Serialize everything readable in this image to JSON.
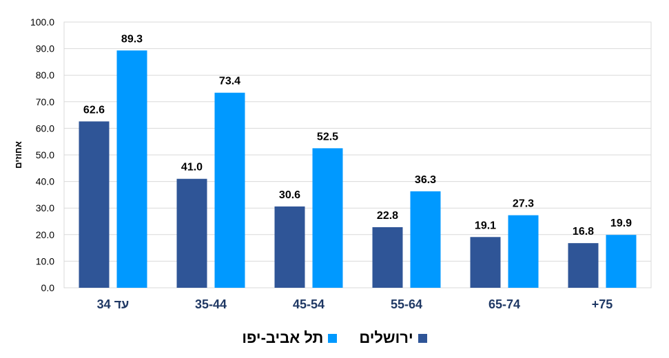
{
  "chart_data": {
    "type": "bar",
    "title": "",
    "xlabel": "",
    "ylabel": "אחוזים",
    "ylim": [
      0,
      100
    ],
    "yticks": [
      "0.0",
      "10.0",
      "20.0",
      "30.0",
      "40.0",
      "50.0",
      "60.0",
      "70.0",
      "80.0",
      "90.0",
      "100.0"
    ],
    "grid": true,
    "legend_position": "bottom",
    "categories": [
      "עד 34",
      "35-44",
      "45-54",
      "55-64",
      "65-74",
      "+75"
    ],
    "series": [
      {
        "name": "ירושלים",
        "color": "#2F5597",
        "values": [
          62.6,
          41.0,
          30.6,
          22.8,
          19.1,
          16.8
        ]
      },
      {
        "name": "תל אביב-יפו",
        "color": "#0099FF",
        "values": [
          89.3,
          73.4,
          52.5,
          36.3,
          27.3,
          19.9
        ]
      }
    ]
  }
}
